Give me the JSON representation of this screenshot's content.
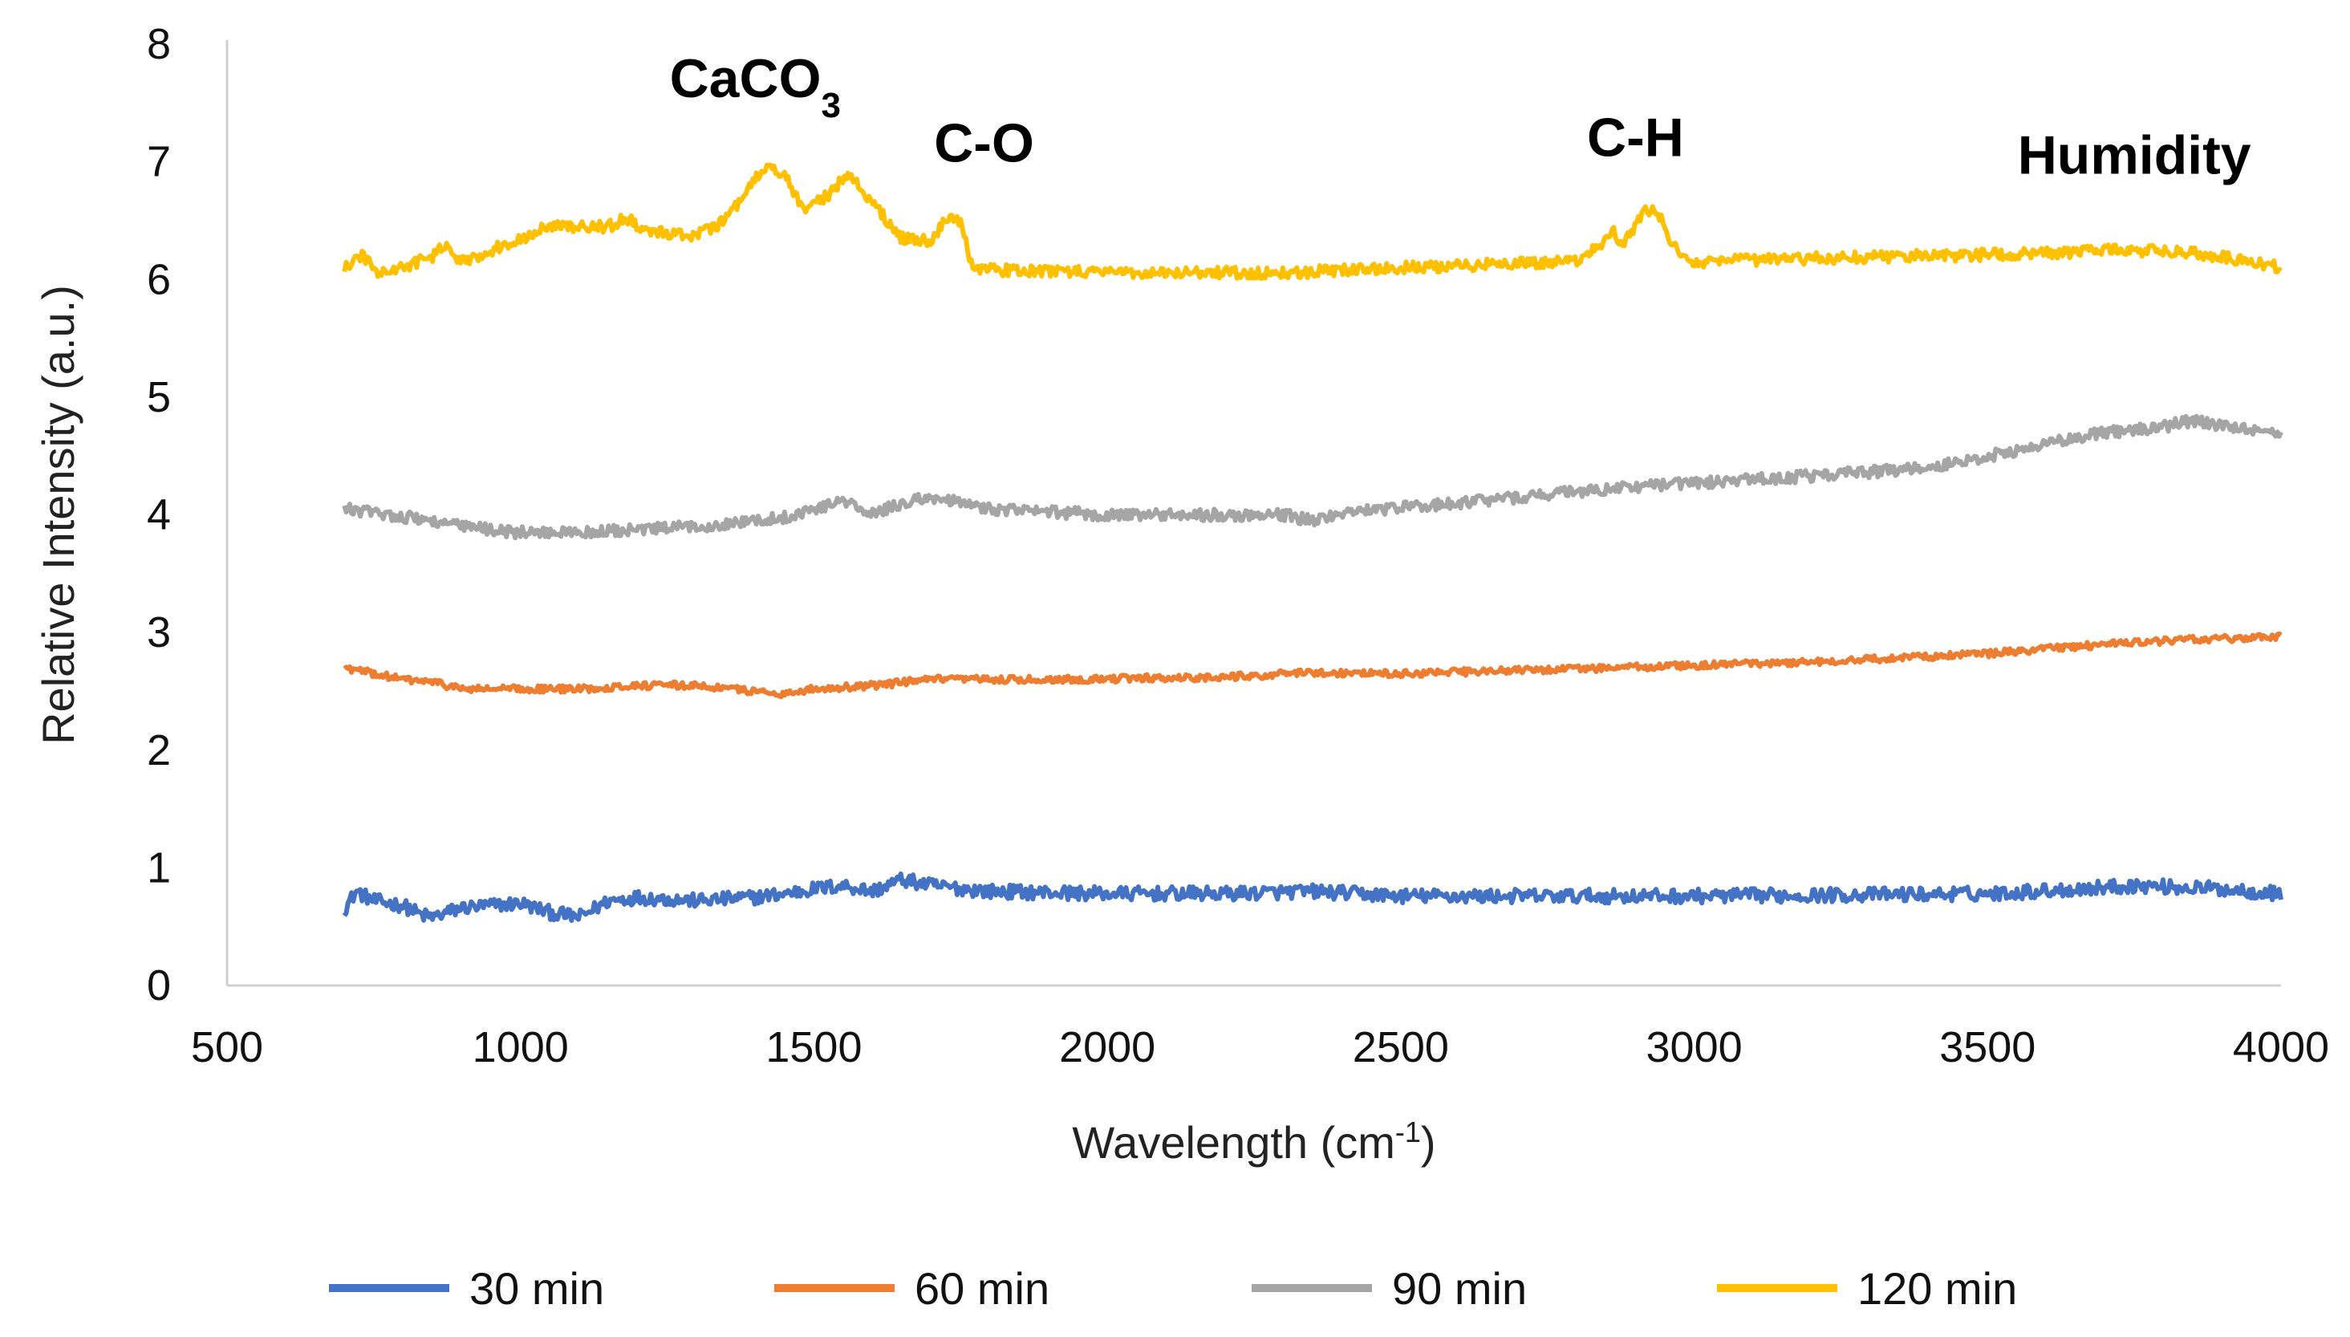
{
  "chart_data": {
    "type": "line",
    "title": "",
    "xlabel": {
      "base": "Wavelength (cm",
      "sup": "-1",
      "end": ")"
    },
    "ylabel": "Relative Intensity (a.u.)",
    "xlim": [
      500,
      4000
    ],
    "ylim": [
      0,
      8
    ],
    "x_ticks": [
      "500",
      "1000",
      "1500",
      "2000",
      "2500",
      "3000",
      "3500",
      "4000"
    ],
    "y_ticks": [
      "0",
      "1",
      "2",
      "3",
      "4",
      "5",
      "6",
      "7",
      "8"
    ],
    "grid": false,
    "legend_position": "bottom",
    "series": [
      {
        "name": "30 min",
        "color": "#4472C4",
        "noise": 0.06,
        "points": [
          [
            700,
            0.65
          ],
          [
            720,
            0.8
          ],
          [
            750,
            0.72
          ],
          [
            800,
            0.68
          ],
          [
            830,
            0.6
          ],
          [
            850,
            0.58
          ],
          [
            900,
            0.66
          ],
          [
            950,
            0.68
          ],
          [
            1000,
            0.7
          ],
          [
            1050,
            0.62
          ],
          [
            1100,
            0.58
          ],
          [
            1150,
            0.72
          ],
          [
            1200,
            0.75
          ],
          [
            1300,
            0.72
          ],
          [
            1400,
            0.75
          ],
          [
            1450,
            0.78
          ],
          [
            1500,
            0.82
          ],
          [
            1550,
            0.85
          ],
          [
            1600,
            0.8
          ],
          [
            1650,
            0.9
          ],
          [
            1700,
            0.85
          ],
          [
            1800,
            0.8
          ],
          [
            2000,
            0.78
          ],
          [
            2200,
            0.78
          ],
          [
            2350,
            0.8
          ],
          [
            2500,
            0.76
          ],
          [
            3000,
            0.76
          ],
          [
            3500,
            0.78
          ],
          [
            3650,
            0.82
          ],
          [
            3750,
            0.85
          ],
          [
            3900,
            0.82
          ],
          [
            4000,
            0.78
          ]
        ]
      },
      {
        "name": "60 min",
        "color": "#ED7D31",
        "noise": 0.03,
        "points": [
          [
            700,
            2.7
          ],
          [
            750,
            2.65
          ],
          [
            800,
            2.6
          ],
          [
            850,
            2.58
          ],
          [
            900,
            2.52
          ],
          [
            1000,
            2.52
          ],
          [
            1100,
            2.52
          ],
          [
            1200,
            2.55
          ],
          [
            1300,
            2.55
          ],
          [
            1400,
            2.5
          ],
          [
            1450,
            2.48
          ],
          [
            1500,
            2.52
          ],
          [
            1600,
            2.55
          ],
          [
            1700,
            2.6
          ],
          [
            1900,
            2.6
          ],
          [
            2200,
            2.62
          ],
          [
            2350,
            2.66
          ],
          [
            2500,
            2.65
          ],
          [
            3000,
            2.72
          ],
          [
            3200,
            2.75
          ],
          [
            3500,
            2.82
          ],
          [
            3700,
            2.9
          ],
          [
            3850,
            2.94
          ],
          [
            4000,
            2.96
          ]
        ]
      },
      {
        "name": "90 min",
        "color": "#A5A5A5",
        "noise": 0.05,
        "points": [
          [
            700,
            4.05
          ],
          [
            750,
            4.02
          ],
          [
            850,
            3.95
          ],
          [
            900,
            3.9
          ],
          [
            1000,
            3.85
          ],
          [
            1100,
            3.85
          ],
          [
            1200,
            3.87
          ],
          [
            1300,
            3.9
          ],
          [
            1400,
            3.95
          ],
          [
            1450,
            3.98
          ],
          [
            1500,
            4.05
          ],
          [
            1550,
            4.12
          ],
          [
            1600,
            4.0
          ],
          [
            1650,
            4.1
          ],
          [
            1700,
            4.15
          ],
          [
            1800,
            4.05
          ],
          [
            2000,
            4.0
          ],
          [
            2200,
            4.0
          ],
          [
            2300,
            4.0
          ],
          [
            2350,
            3.95
          ],
          [
            2400,
            4.02
          ],
          [
            2600,
            4.1
          ],
          [
            2800,
            4.2
          ],
          [
            3000,
            4.27
          ],
          [
            3200,
            4.33
          ],
          [
            3400,
            4.4
          ],
          [
            3500,
            4.5
          ],
          [
            3600,
            4.6
          ],
          [
            3700,
            4.7
          ],
          [
            3800,
            4.75
          ],
          [
            3850,
            4.8
          ],
          [
            3900,
            4.75
          ],
          [
            4000,
            4.7
          ]
        ]
      },
      {
        "name": "120 min",
        "color": "#FFC000",
        "noise": 0.05,
        "points": [
          [
            700,
            6.1
          ],
          [
            730,
            6.2
          ],
          [
            760,
            6.05
          ],
          [
            800,
            6.1
          ],
          [
            850,
            6.2
          ],
          [
            870,
            6.28
          ],
          [
            900,
            6.15
          ],
          [
            1000,
            6.35
          ],
          [
            1050,
            6.45
          ],
          [
            1100,
            6.45
          ],
          [
            1150,
            6.45
          ],
          [
            1180,
            6.52
          ],
          [
            1220,
            6.4
          ],
          [
            1300,
            6.38
          ],
          [
            1350,
            6.5
          ],
          [
            1400,
            6.85
          ],
          [
            1420,
            6.95
          ],
          [
            1450,
            6.9
          ],
          [
            1480,
            6.6
          ],
          [
            1520,
            6.7
          ],
          [
            1560,
            6.9
          ],
          [
            1600,
            6.65
          ],
          [
            1650,
            6.35
          ],
          [
            1700,
            6.32
          ],
          [
            1730,
            6.55
          ],
          [
            1750,
            6.5
          ],
          [
            1770,
            6.1
          ],
          [
            1800,
            6.08
          ],
          [
            2000,
            6.06
          ],
          [
            2200,
            6.06
          ],
          [
            2300,
            6.05
          ],
          [
            2400,
            6.08
          ],
          [
            2600,
            6.12
          ],
          [
            2800,
            6.15
          ],
          [
            2840,
            6.3
          ],
          [
            2860,
            6.42
          ],
          [
            2880,
            6.3
          ],
          [
            2900,
            6.45
          ],
          [
            2920,
            6.6
          ],
          [
            2940,
            6.55
          ],
          [
            2960,
            6.3
          ],
          [
            3000,
            6.15
          ],
          [
            3200,
            6.18
          ],
          [
            3400,
            6.2
          ],
          [
            3600,
            6.22
          ],
          [
            3700,
            6.25
          ],
          [
            3800,
            6.24
          ],
          [
            3900,
            6.2
          ],
          [
            4000,
            6.1
          ]
        ]
      }
    ],
    "annotations": [
      {
        "text": "CaCO",
        "sub": "3",
        "x": 1400,
        "y": 7.55
      },
      {
        "text": "C-O",
        "sub": "",
        "x": 1790,
        "y": 7.0
      },
      {
        "text": "C-H",
        "sub": "",
        "x": 2900,
        "y": 7.05
      },
      {
        "text": "Humidity",
        "sub": "",
        "x": 3750,
        "y": 6.9
      }
    ]
  }
}
